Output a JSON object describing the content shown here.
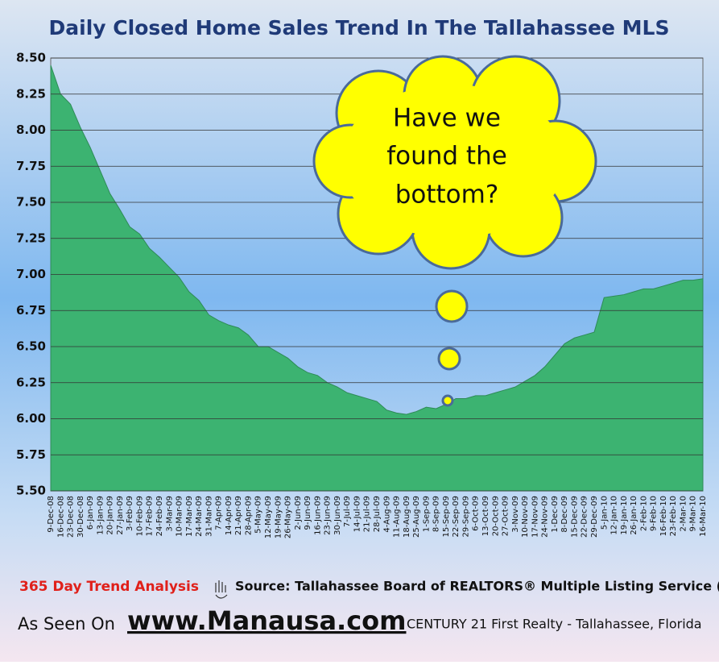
{
  "chart_data": {
    "type": "area",
    "title": "Daily Closed Home Sales Trend In The Tallahassee MLS",
    "annotation": [
      "Have we",
      "found the",
      "bottom?"
    ],
    "categories": [
      "9-Dec-08",
      "16-Dec-08",
      "23-Dec-08",
      "30-Dec-08",
      "6-Jan-09",
      "13-Jan-09",
      "20-Jan-09",
      "27-Jan-09",
      "3-Feb-09",
      "10-Feb-09",
      "17-Feb-09",
      "24-Feb-09",
      "3-Mar-09",
      "10-Mar-09",
      "17-Mar-09",
      "24-Mar-09",
      "31-Mar-09",
      "7-Apr-09",
      "14-Apr-09",
      "21-Apr-09",
      "28-Apr-09",
      "5-May-09",
      "12-May-09",
      "19-May-09",
      "26-May-09",
      "2-Jun-09",
      "9-Jun-09",
      "16-Jun-09",
      "23-Jun-09",
      "30-Jun-09",
      "7-Jul-09",
      "14-Jul-09",
      "21-Jul-09",
      "28-Jul-09",
      "4-Aug-09",
      "11-Aug-09",
      "18-Aug-09",
      "25-Aug-09",
      "1-Sep-09",
      "8-Sep-09",
      "15-Sep-09",
      "22-Sep-09",
      "29-Sep-09",
      "6-Oct-09",
      "13-Oct-09",
      "20-Oct-09",
      "27-Oct-09",
      "3-Nov-09",
      "10-Nov-09",
      "17-Nov-09",
      "24-Nov-09",
      "1-Dec-09",
      "8-Dec-09",
      "15-Dec-09",
      "22-Dec-09",
      "29-Dec-09",
      "5-Jan-10",
      "12-Jan-10",
      "19-Jan-10",
      "26-Jan-10",
      "2-Feb-10",
      "9-Feb-10",
      "16-Feb-10",
      "23-Feb-10",
      "2-Mar-10",
      "9-Mar-10",
      "16-Mar-10"
    ],
    "values": [
      8.45,
      8.25,
      8.18,
      8.02,
      7.88,
      7.72,
      7.56,
      7.45,
      7.33,
      7.28,
      7.18,
      7.12,
      7.05,
      6.98,
      6.88,
      6.82,
      6.72,
      6.68,
      6.65,
      6.63,
      6.58,
      6.5,
      6.5,
      6.46,
      6.42,
      6.36,
      6.32,
      6.3,
      6.25,
      6.22,
      6.18,
      6.16,
      6.14,
      6.12,
      6.06,
      6.04,
      6.03,
      6.05,
      6.08,
      6.07,
      6.1,
      6.14,
      6.14,
      6.16,
      6.16,
      6.18,
      6.2,
      6.22,
      6.26,
      6.3,
      6.36,
      6.44,
      6.52,
      6.56,
      6.58,
      6.6,
      6.84,
      6.85,
      6.86,
      6.88,
      6.9,
      6.9,
      6.92,
      6.94,
      6.96,
      6.96,
      6.97
    ],
    "color": "#3cb371",
    "ylim": [
      5.5,
      8.5
    ],
    "yticks": [
      {
        "value": 5.5,
        "label": "5.50"
      },
      {
        "value": 5.75,
        "label": "5.75"
      },
      {
        "value": 6,
        "label": "6.00"
      },
      {
        "value": 6.25,
        "label": "6.25"
      },
      {
        "value": 6.5,
        "label": "6.50"
      },
      {
        "value": 6.75,
        "label": "6.75"
      },
      {
        "value": 7,
        "label": "7.00"
      },
      {
        "value": 7.25,
        "label": "7.25"
      },
      {
        "value": 7.5,
        "label": "7.50"
      },
      {
        "value": 7.75,
        "label": "7.75"
      },
      {
        "value": 8,
        "label": "8.00"
      },
      {
        "value": 8.25,
        "label": "8.25"
      },
      {
        "value": 8.5,
        "label": "8.50"
      }
    ],
    "grid": true
  },
  "footer": {
    "trend": "365 Day Trend Analysis",
    "source": "Source: Tallahassee Board of REALTORS® Multiple Listing Service (MLS)",
    "seen": "As Seen On",
    "site": "www.Manausa.com",
    "company": "CENTURY 21 First Realty - Tallahassee, Florida"
  }
}
